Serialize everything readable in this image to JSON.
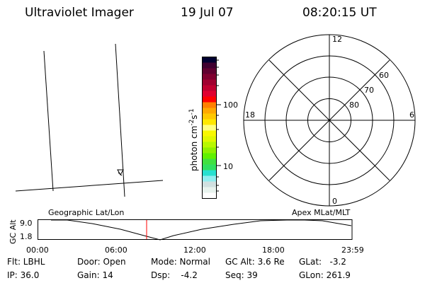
{
  "header": {
    "title": "Ultraviolet Imager",
    "date": "19 Jul 07",
    "time": "08:20:15 UT"
  },
  "colorbar": {
    "label": "photon cm",
    "exp1": "-2",
    "unit2": "s",
    "exp2": "-1",
    "ticks": [
      "100",
      "10"
    ],
    "colors": [
      "#ffffff",
      "#e8f3ee",
      "#d0e0e0",
      "#90eef0",
      "#28e0d0",
      "#30e060",
      "#40e040",
      "#60f000",
      "#90f000",
      "#b8f800",
      "#e0f800",
      "#f8f800",
      "#ffff80",
      "#ffe800",
      "#ffc800",
      "#ffa800",
      "#ff8000",
      "#ff0000",
      "#e00030",
      "#c00030",
      "#a00030",
      "#800030",
      "#600030",
      "#400030",
      "#000030"
    ]
  },
  "polar": {
    "mlt_labels": [
      "12",
      "6",
      "0",
      "18"
    ],
    "lat_labels": [
      "60",
      "70",
      "80"
    ]
  },
  "altitude_plot": {
    "left_label": "Geographic Lat/Lon",
    "right_label": "Apex MLat/MLT",
    "ylabel": "GC Alt",
    "yticks": [
      "9.0",
      "1.8"
    ],
    "xticks": [
      "00:00",
      "06:00",
      "12:00",
      "18:00",
      "23:59"
    ],
    "current_time_color": "#ff0000"
  },
  "status": {
    "flt": "Flt: LBHL",
    "ip": "IP: 36.0",
    "door": "Door: Open",
    "gain": "Gain: 14",
    "mode": "Mode: Normal",
    "dsp": "Dsp:    -4.2",
    "gcalt": "GC Alt: 3.6 Re",
    "seq": "Seq: 39",
    "glat": "GLat:   -3.2",
    "glon": "GLon: 261.9"
  }
}
